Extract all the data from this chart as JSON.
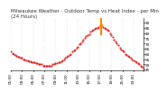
{
  "title": "Milwaukee Weather - Outdoor Temp vs Heat Index - per Min\n(24 Hours)",
  "bg_color": "#ffffff",
  "line_color": "#dd0000",
  "highlight_color": "#ff8800",
  "y_min": 44,
  "y_max": 94,
  "y_ticks": [
    45,
    50,
    55,
    60,
    65,
    70,
    75,
    80,
    85,
    90
  ],
  "data_x": [
    0,
    1,
    2,
    3,
    4,
    5,
    6,
    7,
    8,
    9,
    10,
    11,
    12,
    13,
    14,
    15,
    16,
    17,
    18,
    19,
    20,
    21,
    22,
    23,
    24,
    25,
    26,
    27,
    28,
    29,
    30,
    31,
    32,
    33,
    34,
    35,
    36,
    37,
    38,
    39,
    40,
    41,
    42,
    43,
    44,
    45,
    46,
    47,
    48,
    49,
    50,
    51,
    52,
    53,
    54,
    55,
    56,
    57,
    58,
    59,
    60,
    61,
    62,
    63,
    64,
    65,
    66,
    67,
    68,
    69,
    70,
    71,
    72,
    73,
    74,
    75,
    76,
    77,
    78,
    79,
    80,
    81,
    82,
    83,
    84,
    85,
    86,
    87,
    88,
    89,
    90,
    91,
    92,
    93,
    94,
    95
  ],
  "data_y": [
    62,
    61,
    60,
    59,
    58,
    57,
    57,
    56,
    56,
    55,
    55,
    54,
    54,
    53,
    53,
    52,
    52,
    52,
    51,
    51,
    50,
    50,
    50,
    49,
    49,
    49,
    49,
    49,
    49,
    49,
    50,
    50,
    51,
    51,
    52,
    52,
    53,
    54,
    55,
    56,
    57,
    58,
    59,
    60,
    62,
    63,
    64,
    66,
    67,
    69,
    70,
    72,
    74,
    75,
    77,
    78,
    79,
    81,
    82,
    83,
    84,
    85,
    85,
    86,
    87,
    87,
    86,
    85,
    84,
    83,
    82,
    80,
    78,
    76,
    74,
    72,
    70,
    68,
    66,
    64,
    63,
    62,
    60,
    59,
    58,
    57,
    56,
    55,
    54,
    53,
    52,
    51,
    50,
    49,
    48,
    47
  ],
  "peak_x": 65,
  "x_tick_positions": [
    0,
    8,
    16,
    24,
    32,
    40,
    48,
    56,
    64,
    72,
    80,
    88,
    95
  ],
  "x_tick_labels": [
    "01:00",
    "03:00",
    "05:00",
    "07:00",
    "09:00",
    "11:00",
    "13:00",
    "15:00",
    "17:00",
    "19:00",
    "21:00",
    "23:00",
    ""
  ],
  "title_fontsize": 4.0,
  "tick_fontsize": 3.0,
  "vline_positions": [
    0,
    8,
    16,
    24,
    32,
    40,
    48,
    56,
    64,
    72,
    80,
    88,
    95
  ]
}
